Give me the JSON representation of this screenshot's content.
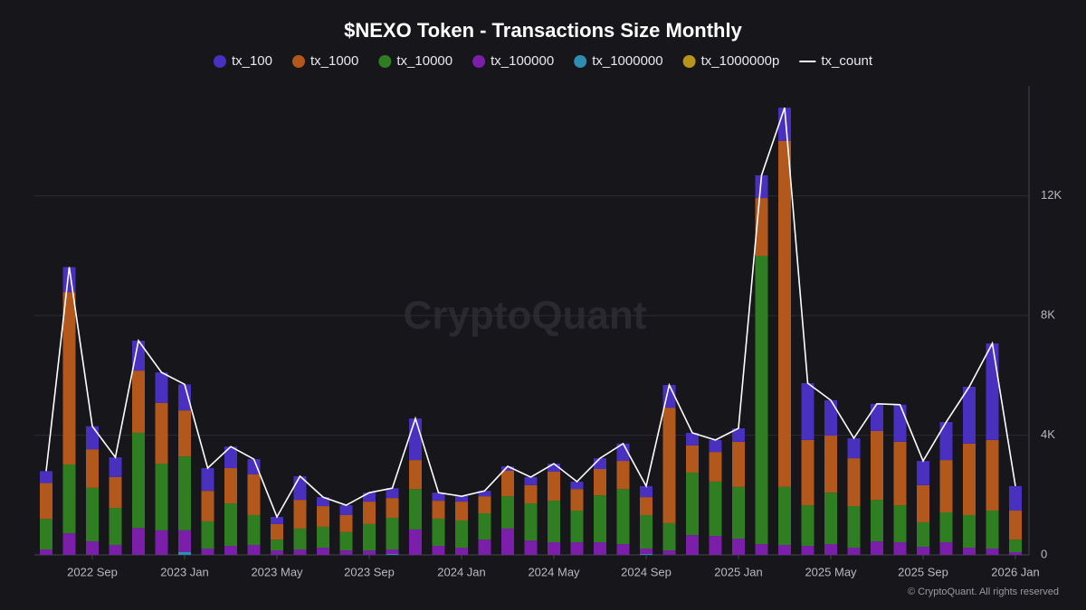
{
  "chart_data": {
    "type": "bar",
    "stacked": true,
    "title": "$NEXO Token - Transactions Size Monthly",
    "watermark": "CryptoQuant",
    "credit": "© CryptoQuant. All rights reserved",
    "categories": [
      null,
      null,
      "2022 Sep",
      null,
      null,
      null,
      "2023 Jan",
      null,
      null,
      null,
      "2023 May",
      null,
      null,
      null,
      "2023 Sep",
      null,
      null,
      null,
      "2024 Jan",
      null,
      null,
      null,
      "2024 May",
      null,
      null,
      null,
      "2024 Sep",
      null,
      null,
      null,
      "2025 Jan",
      null,
      null,
      null,
      "2025 May",
      null,
      null,
      null,
      "2025 Sep",
      null,
      null,
      null,
      "2026 Jan"
    ],
    "ylim": [
      0,
      15680
    ],
    "yticks": [
      0,
      {
        "value": 4000,
        "label": "4K"
      },
      {
        "value": 8000,
        "label": "8K"
      },
      {
        "value": 12000,
        "label": "12K"
      }
    ],
    "grid": true,
    "series": [
      {
        "name": "tx_100",
        "color": "#4a30bf",
        "values": [
          400,
          840,
          770,
          660,
          1000,
          1020,
          870,
          760,
          720,
          510,
          240,
          790,
          300,
          330,
          300,
          330,
          1390,
          270,
          180,
          180,
          150,
          270,
          270,
          250,
          360,
          580,
          370,
          760,
          420,
          400,
          450,
          760,
          1110,
          1900,
          1180,
          670,
          910,
          1240,
          810,
          1270,
          1900,
          3230,
          820
        ]
      },
      {
        "name": "tx_1000",
        "color": "#b2581c",
        "values": [
          1200,
          5760,
          1290,
          1030,
          2080,
          2030,
          1540,
          1020,
          1180,
          1360,
          520,
          960,
          690,
          570,
          750,
          660,
          970,
          600,
          630,
          570,
          850,
          610,
          970,
          720,
          880,
          940,
          600,
          3860,
          910,
          990,
          1510,
          1930,
          11570,
          2180,
          1910,
          1600,
          2300,
          2120,
          1240,
          1750,
          2390,
          2360,
          970
        ]
      },
      {
        "name": "tx_10000",
        "color": "#2f7f22",
        "values": [
          1020,
          2300,
          1790,
          1240,
          3180,
          2230,
          2470,
          910,
          1420,
          1000,
          360,
          700,
          700,
          610,
          880,
          1060,
          1350,
          910,
          910,
          880,
          1080,
          1240,
          1390,
          1060,
          1570,
          1840,
          1120,
          910,
          2090,
          1820,
          1730,
          9640,
          1940,
          1360,
          1720,
          1390,
          1390,
          1240,
          820,
          1000,
          1090,
          1270,
          420
        ]
      },
      {
        "name": "tx_100000",
        "color": "#7b1fab",
        "values": [
          180,
          720,
          450,
          330,
          900,
          820,
          720,
          210,
          300,
          330,
          150,
          180,
          240,
          150,
          150,
          150,
          850,
          300,
          240,
          510,
          880,
          480,
          420,
          420,
          420,
          360,
          180,
          150,
          660,
          630,
          540,
          360,
          330,
          300,
          360,
          240,
          450,
          420,
          270,
          420,
          240,
          210,
          90
        ]
      },
      {
        "name": "tx_1000000",
        "color": "#2e8db2",
        "values": [
          0,
          0,
          0,
          0,
          0,
          0,
          100,
          0,
          0,
          0,
          0,
          0,
          0,
          0,
          0,
          30,
          0,
          0,
          0,
          0,
          0,
          0,
          0,
          0,
          0,
          0,
          30,
          0,
          0,
          0,
          0,
          0,
          0,
          0,
          0,
          0,
          0,
          0,
          0,
          0,
          0,
          0,
          0
        ]
      },
      {
        "name": "tx_1000000p",
        "color": "#b8941c",
        "values": [
          0,
          0,
          0,
          0,
          0,
          0,
          0,
          0,
          0,
          0,
          0,
          0,
          0,
          0,
          0,
          0,
          0,
          0,
          0,
          0,
          0,
          0,
          0,
          0,
          0,
          0,
          0,
          0,
          0,
          0,
          0,
          0,
          0,
          0,
          0,
          0,
          0,
          0,
          0,
          0,
          0,
          0,
          0
        ]
      },
      {
        "name": "tx_count",
        "color": "#ffffff",
        "type": "line",
        "values": [
          2800,
          9620,
          4300,
          3260,
          7160,
          6100,
          5700,
          2900,
          3620,
          3200,
          1270,
          2630,
          1930,
          1660,
          2080,
          2230,
          4560,
          2080,
          1960,
          2140,
          2960,
          2600,
          3050,
          2450,
          3230,
          3720,
          2300,
          5680,
          4080,
          3840,
          4230,
          12690,
          14950,
          5740,
          5170,
          3900,
          5050,
          5020,
          3140,
          4440,
          5620,
          7070,
          2300
        ]
      }
    ]
  }
}
